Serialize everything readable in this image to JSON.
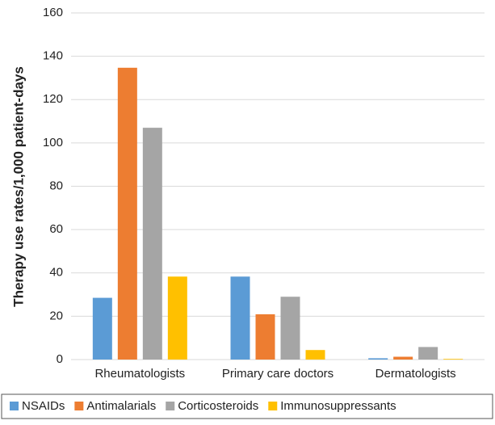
{
  "chart_data": {
    "type": "bar",
    "y_label": "Therapy use rates/1,000 patient-days",
    "categories": [
      "Rheumatologists",
      "Primary care doctors",
      "Dermatologists"
    ],
    "series": [
      {
        "name": "NSAIDs",
        "color": "#5b9bd5",
        "values": [
          28.5,
          38.3,
          0.6
        ]
      },
      {
        "name": "Antimalarials",
        "color": "#ed7d31",
        "values": [
          134.7,
          20.9,
          1.3
        ]
      },
      {
        "name": "Corticosteroids",
        "color": "#a5a5a5",
        "values": [
          107,
          29,
          5.8
        ]
      },
      {
        "name": "Immunosuppressants",
        "color": "#ffc000",
        "values": [
          38.3,
          4.4,
          0.3
        ]
      }
    ],
    "ylim": [
      0,
      160
    ],
    "yticks": [
      0,
      20,
      40,
      60,
      80,
      100,
      120,
      140,
      160
    ],
    "grid": true,
    "legend": "bottom"
  }
}
